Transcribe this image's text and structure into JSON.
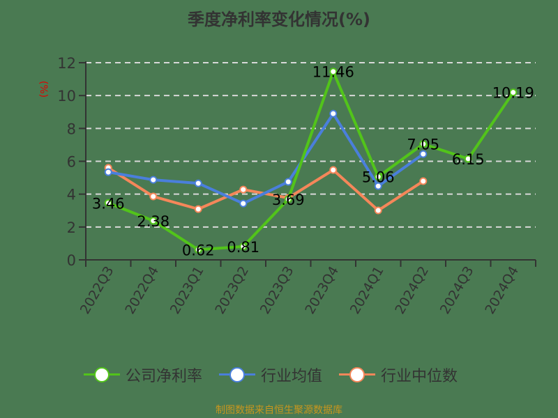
{
  "title": "季度净利率变化情况(%)",
  "y_unit": "(%)",
  "footer": "制图数据来自恒生聚源数据库",
  "legend": [
    {
      "label": "公司净利率",
      "color": "#52c41a"
    },
    {
      "label": "行业均值",
      "color": "#4a7fdc"
    },
    {
      "label": "行业中位数",
      "color": "#f5875a"
    }
  ],
  "chart_data": {
    "type": "line",
    "title": "季度净利率变化情况(%)",
    "xlabel": "",
    "ylabel": "(%)",
    "ylim": [
      0,
      12
    ],
    "yticks": [
      0,
      2,
      4,
      6,
      8,
      10,
      12
    ],
    "grid": "horizontal dashed",
    "legend_position": "bottom",
    "categories": [
      "2022Q3",
      "2022Q4",
      "2023Q1",
      "2023Q2",
      "2023Q3",
      "2023Q4",
      "2024Q1",
      "2024Q2",
      "2024Q3",
      "2024Q4"
    ],
    "series": [
      {
        "name": "公司净利率",
        "color": "#52c41a",
        "values": [
          3.46,
          2.38,
          0.62,
          0.81,
          3.69,
          11.46,
          5.06,
          7.05,
          6.15,
          10.19
        ],
        "labels": [
          "3.46",
          "2.38",
          "0.62",
          "0.81",
          "3.69",
          "11.46",
          "5.06",
          "7.05",
          "6.15",
          "10.19"
        ]
      },
      {
        "name": "行业均值",
        "color": "#4a7fdc",
        "values": [
          5.34,
          4.87,
          4.66,
          3.43,
          4.75,
          8.9,
          4.49,
          6.44,
          null,
          null
        ]
      },
      {
        "name": "行业中位数",
        "color": "#f5875a",
        "values": [
          5.6,
          3.86,
          3.09,
          4.28,
          3.77,
          5.47,
          3.01,
          4.79,
          null,
          null
        ]
      }
    ]
  }
}
